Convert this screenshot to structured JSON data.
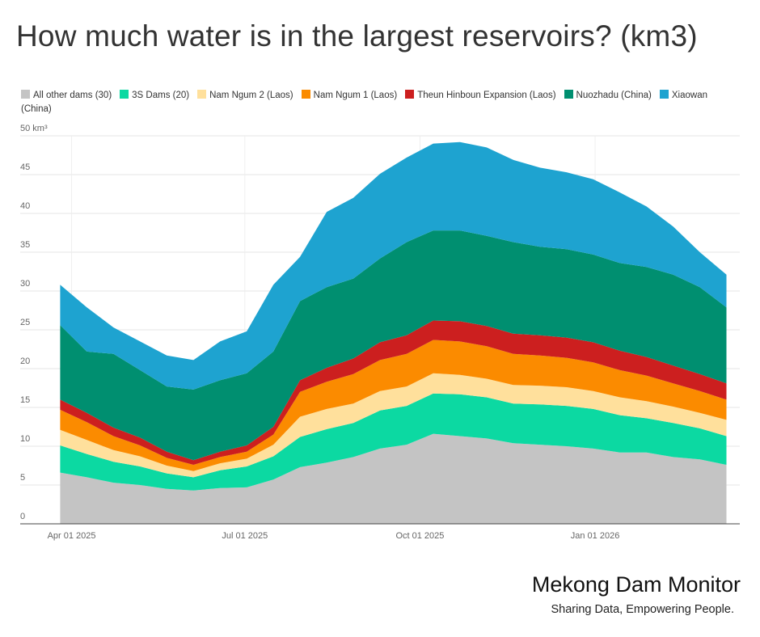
{
  "chart_data": {
    "type": "stacked_area",
    "title": "How much water is in the largest reservoirs? (km3)",
    "x": [
      "2025-03-26",
      "2025-04-09",
      "2025-04-23",
      "2025-05-07",
      "2025-05-21",
      "2025-06-04",
      "2025-06-18",
      "2025-07-02",
      "2025-07-16",
      "2025-07-30",
      "2025-08-13",
      "2025-08-27",
      "2025-09-10",
      "2025-09-24",
      "2025-10-08",
      "2025-10-22",
      "2025-11-05",
      "2025-11-19",
      "2025-12-03",
      "2025-12-17",
      "2025-12-31",
      "2026-01-14",
      "2026-01-28",
      "2026-02-11",
      "2026-02-25",
      "2026-03-11"
    ],
    "series": [
      {
        "name": "All other dams (30)",
        "color": "#c4c4c4",
        "values": [
          6.6,
          6.0,
          5.3,
          5.0,
          4.5,
          4.3,
          4.6,
          4.7,
          5.7,
          7.3,
          7.9,
          8.6,
          9.7,
          10.2,
          11.6,
          11.3,
          11.0,
          10.4,
          10.2,
          10.0,
          9.7,
          9.2,
          9.2,
          8.6,
          8.3,
          7.6
        ]
      },
      {
        "name": "3S Dams (20)",
        "color": "#0cd9a2",
        "values": [
          3.5,
          3.0,
          2.7,
          2.4,
          2.0,
          1.7,
          2.3,
          2.7,
          3.0,
          3.9,
          4.3,
          4.4,
          4.9,
          5.0,
          5.2,
          5.4,
          5.3,
          5.1,
          5.2,
          5.2,
          5.1,
          4.8,
          4.4,
          4.4,
          4.0,
          3.7
        ]
      },
      {
        "name": "Nam Ngum 2 (Laos)",
        "color": "#ffe09c",
        "values": [
          2.0,
          1.8,
          1.5,
          1.3,
          1.0,
          0.8,
          0.9,
          1.0,
          1.5,
          2.6,
          2.6,
          2.5,
          2.5,
          2.5,
          2.6,
          2.5,
          2.4,
          2.4,
          2.4,
          2.4,
          2.3,
          2.3,
          2.2,
          2.1,
          2.0,
          2.1
        ]
      },
      {
        "name": "Nam Ngum 1 (Laos)",
        "color": "#fb8b00",
        "values": [
          2.6,
          2.3,
          1.8,
          1.4,
          1.0,
          0.8,
          0.8,
          0.9,
          1.3,
          3.2,
          3.5,
          3.8,
          4.0,
          4.2,
          4.3,
          4.3,
          4.2,
          4.0,
          3.9,
          3.8,
          3.7,
          3.5,
          3.3,
          3.0,
          2.8,
          2.6
        ]
      },
      {
        "name": "Theun Hinboun Expansion (Laos)",
        "color": "#cc1f1f",
        "values": [
          1.3,
          1.2,
          1.1,
          1.0,
          0.8,
          0.6,
          0.7,
          0.8,
          1.0,
          1.5,
          1.8,
          2.0,
          2.3,
          2.4,
          2.5,
          2.6,
          2.6,
          2.6,
          2.6,
          2.6,
          2.6,
          2.5,
          2.4,
          2.3,
          2.2,
          2.1
        ]
      },
      {
        "name": "Nuozhadu (China)",
        "color": "#008f70",
        "values": [
          9.6,
          7.9,
          9.5,
          8.7,
          8.4,
          9.1,
          9.2,
          9.3,
          9.7,
          10.2,
          10.4,
          10.3,
          10.8,
          12.0,
          11.6,
          11.7,
          11.6,
          11.8,
          11.4,
          11.4,
          11.3,
          11.3,
          11.6,
          11.7,
          11.2,
          9.8
        ]
      },
      {
        "name": "Xiaowan (China)",
        "color": "#1ea3d0",
        "values": [
          5.2,
          5.7,
          3.4,
          3.7,
          4.0,
          3.8,
          5.0,
          5.4,
          8.6,
          5.7,
          9.7,
          10.4,
          10.9,
          10.9,
          11.2,
          11.4,
          11.4,
          10.6,
          10.2,
          9.9,
          9.7,
          9.1,
          7.8,
          6.2,
          4.5,
          4.2
        ]
      }
    ],
    "xlim": [
      "2025-03-05",
      "2026-03-18"
    ],
    "xticks": [
      {
        "value": "2025-04-01",
        "label": "Apr 01 2025"
      },
      {
        "value": "2025-07-01",
        "label": "Jul 01 2025"
      },
      {
        "value": "2025-10-01",
        "label": "Oct 01 2025"
      },
      {
        "value": "2026-01-01",
        "label": "Jan 01 2026"
      }
    ],
    "ylim": [
      0,
      50
    ],
    "yticks": [
      0,
      5,
      10,
      15,
      20,
      25,
      30,
      35,
      40,
      45,
      {
        "value": 50,
        "label": "50 km³"
      }
    ],
    "grid": true,
    "legend": "top"
  },
  "brand": {
    "name": "Mekong Dam Monitor",
    "tagline": "Sharing Data, Empowering People."
  }
}
